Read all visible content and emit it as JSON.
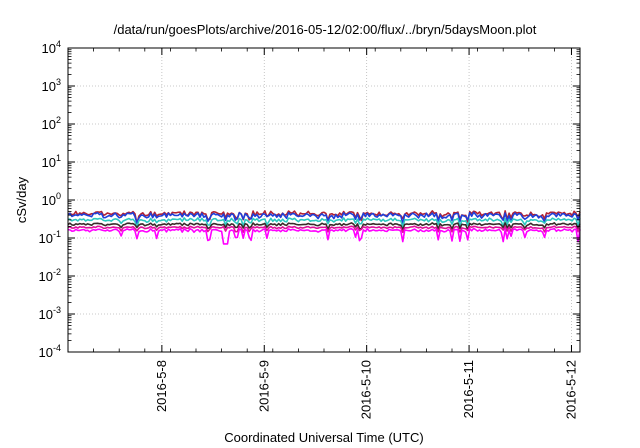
{
  "chart_data": {
    "type": "line",
    "title": "/data/run/goesPlots/archive/2016-05-12/02:00/flux/../bryn/5daysMoon.plot",
    "xlabel": "Coordinated Universal Time (UTC)",
    "ylabel": "cSv/day",
    "yscale": "log",
    "ylim": [
      0.0001,
      10000
    ],
    "y_ticks": [
      {
        "value": 0.0001,
        "base": "10",
        "exp": "-4"
      },
      {
        "value": 0.001,
        "base": "10",
        "exp": "-3"
      },
      {
        "value": 0.01,
        "base": "10",
        "exp": "-2"
      },
      {
        "value": 0.1,
        "base": "10",
        "exp": "-1"
      },
      {
        "value": 1,
        "base": "10",
        "exp": "0"
      },
      {
        "value": 10,
        "base": "10",
        "exp": "1"
      },
      {
        "value": 100,
        "base": "10",
        "exp": "2"
      },
      {
        "value": 1000,
        "base": "10",
        "exp": "3"
      },
      {
        "value": 10000,
        "base": "10",
        "exp": "4"
      }
    ],
    "x_range": [
      "2016-05-07T02:00",
      "2016-05-12T02:00"
    ],
    "x_ticks": [
      "2016-5-8",
      "2016-5-9",
      "2016-5-10",
      "2016-5-11",
      "2016-5-12"
    ],
    "grid": true,
    "legend": "none",
    "series": [
      {
        "color": "#b22234",
        "level": 0.44,
        "noise": 0.17,
        "dip_depth": 0.35
      },
      {
        "color": "#1f3fd8",
        "level": 0.4,
        "noise": 0.17,
        "dip_depth": 0.35
      },
      {
        "color": "#2ec8c0",
        "level": 0.3,
        "noise": 0.12,
        "dip_depth": 0.3
      },
      {
        "color": "#3a2a2a",
        "level": 0.23,
        "noise": 0.08,
        "dip_depth": 0.25
      },
      {
        "color": "#e0109a",
        "level": 0.19,
        "noise": 0.07,
        "dip_depth": 0.25
      },
      {
        "color": "#ff00ff",
        "level": 0.16,
        "noise": 0.1,
        "dip_depth": 0.55
      }
    ],
    "deep_dip": {
      "time": "2016-05-08T15:00",
      "value": 0.07
    }
  }
}
